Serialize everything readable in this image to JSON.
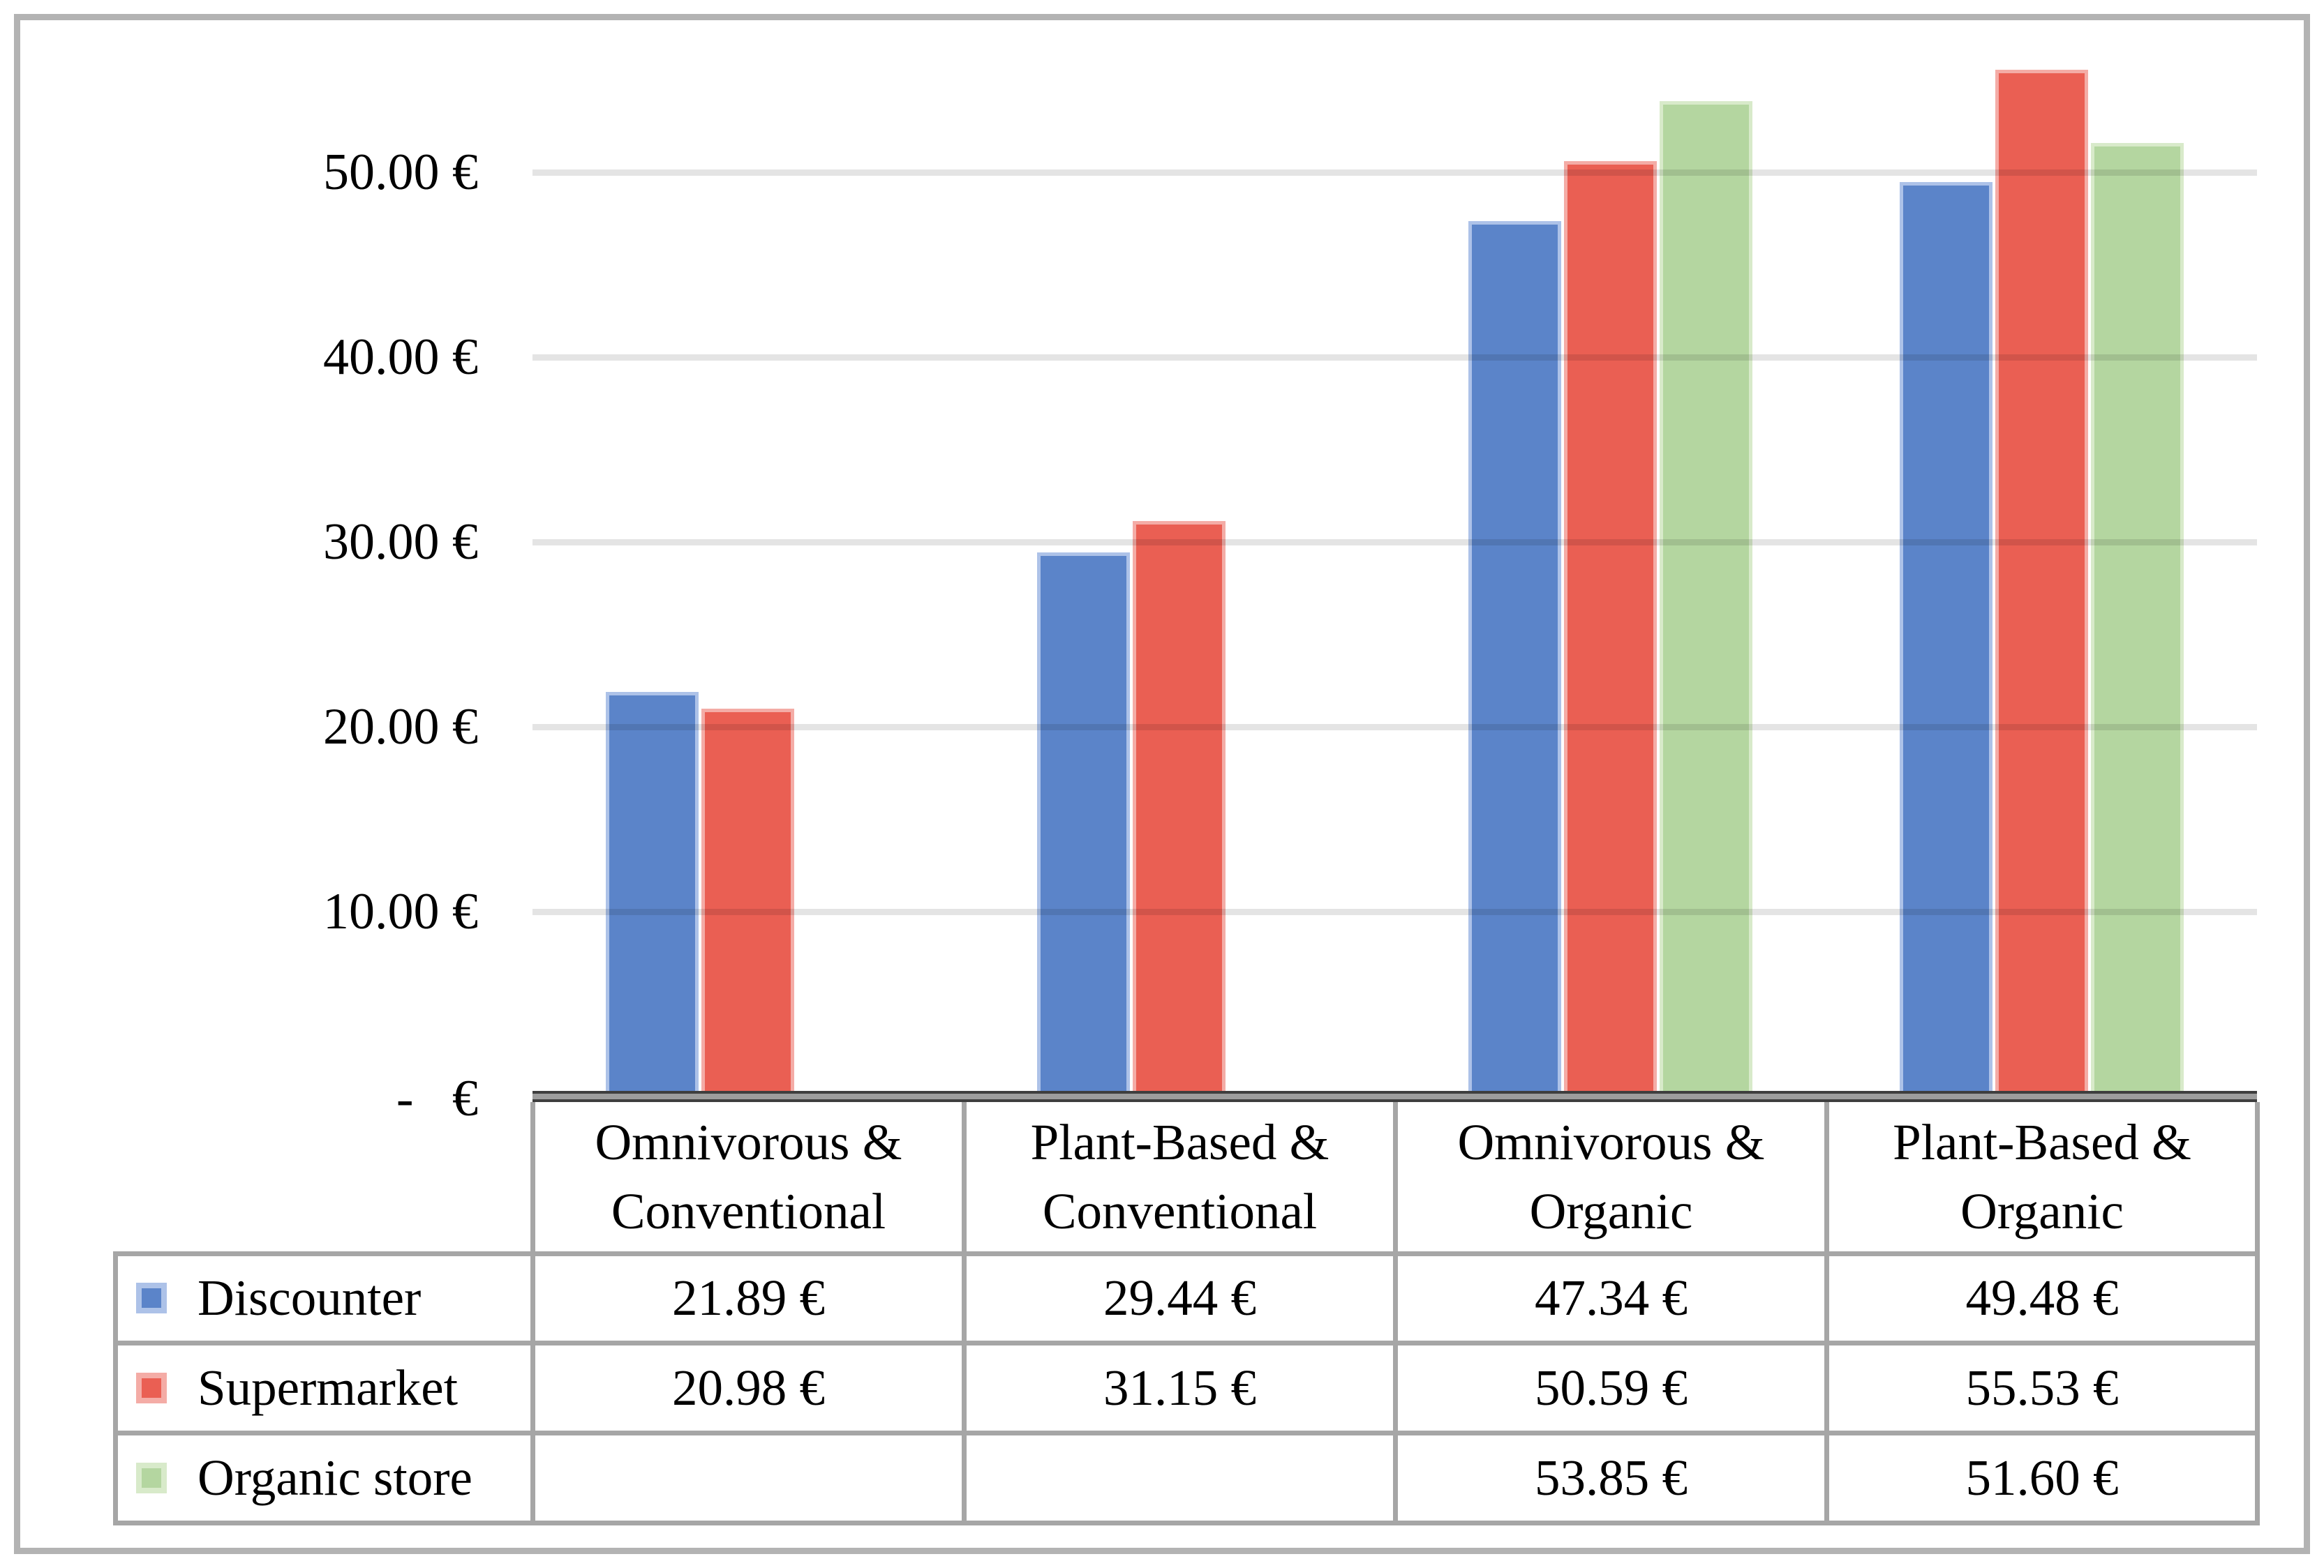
{
  "chart_data": {
    "type": "bar",
    "title": "",
    "xlabel": "",
    "ylabel": "",
    "categories": [
      "Omnivorous & Conventional",
      "Plant-Based & Conventional",
      "Omnivorous & Organic",
      "Plant-Based & Organic"
    ],
    "series": [
      {
        "name": "Discounter",
        "color": "#5b84c9",
        "border_color": "#adc2e8",
        "values": [
          21.89,
          29.44,
          47.34,
          49.48
        ]
      },
      {
        "name": "Supermarket",
        "color": "#ea5f53",
        "border_color": "#f4aca6",
        "values": [
          20.98,
          31.15,
          50.59,
          55.53
        ]
      },
      {
        "name": "Organic store",
        "color": "#b4d6a0",
        "border_color": "#d8eaca",
        "values": [
          null,
          null,
          53.85,
          51.6
        ]
      }
    ],
    "y_axis": {
      "range": [
        0,
        57
      ],
      "tick_step": 10,
      "gridlines": true,
      "ticks": [
        {
          "value": 50,
          "label": "50.00 €"
        },
        {
          "value": 40,
          "label": "40.00 €"
        },
        {
          "value": 30,
          "label": "30.00 €"
        },
        {
          "value": 20,
          "label": "20.00 €"
        },
        {
          "value": 10,
          "label": "10.00 €"
        },
        {
          "value": 0,
          "label": "-   €"
        }
      ]
    },
    "value_format": "0.00 €",
    "currency": "€",
    "legend_position": "table-left",
    "table_values": [
      [
        "21.89 €",
        "29.44 €",
        "47.34 €",
        "49.48 €"
      ],
      [
        "20.98 €",
        "31.15 €",
        "50.59 €",
        "55.53 €"
      ],
      [
        "",
        "",
        "53.85 €",
        "51.60 €"
      ]
    ]
  }
}
